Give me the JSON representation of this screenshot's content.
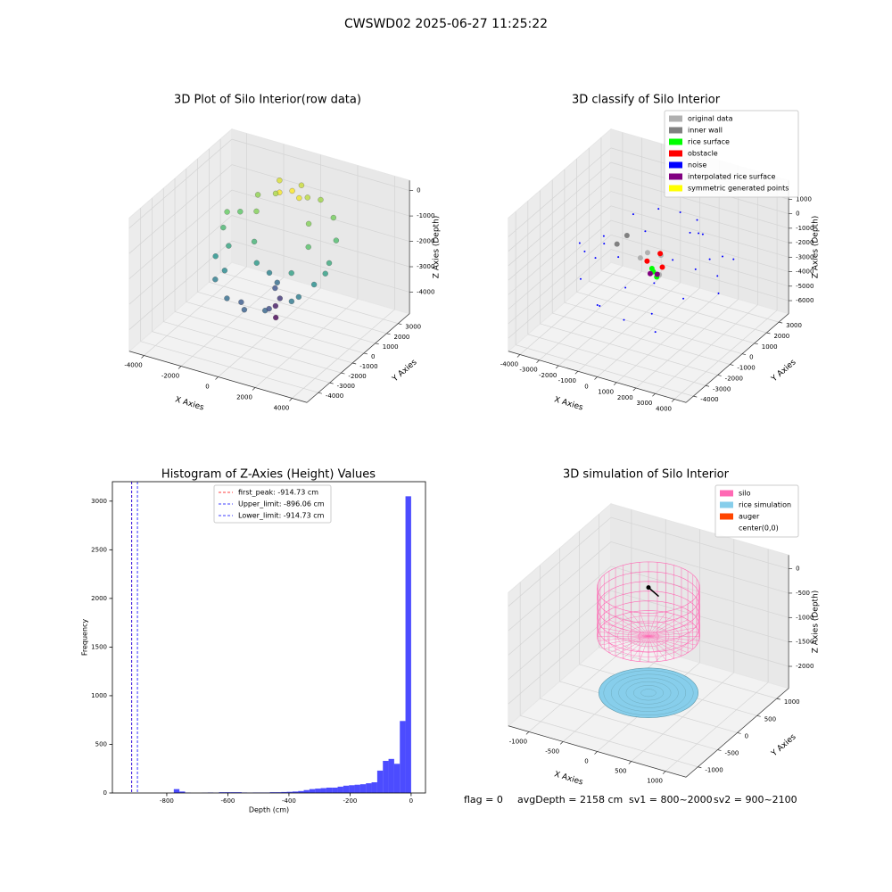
{
  "title": "CWSWD02 2025-06-27 11:25:22",
  "footer": {
    "flag": "flag = 0",
    "avg_depth": "avgDepth = 2158 cm",
    "sv1": "sv1 = 800~2000",
    "sv2": "sv2 = 900~2100"
  },
  "chart_data": [
    {
      "type": "scatter3d",
      "title": "3D Plot of Silo Interior(row data)",
      "x_label": "X Axies",
      "y_label": "Y Axies",
      "z_label": "Z Axies (Depth)",
      "xlim": [
        -4800,
        4800
      ],
      "ylim": [
        -5000,
        4000
      ],
      "zlim": [
        -4850,
        400
      ],
      "xticks": [
        -4000,
        -2000,
        0,
        2000,
        4000
      ],
      "yticks": [
        -4000,
        -3000,
        -2000,
        -1000,
        0,
        1000,
        2000,
        3000
      ],
      "zticks": [
        0,
        -1000,
        -2000,
        -3000,
        -4000
      ],
      "colormap": "viridis",
      "x": [
        -2500,
        -2800,
        -2600,
        -2000,
        -1000,
        0,
        1000,
        2000,
        2600,
        2800,
        2500,
        1800,
        800,
        -300,
        -1300,
        -2100,
        -500,
        0,
        500,
        -1500,
        -1000,
        -500,
        0,
        300,
        0,
        200,
        -100,
        100,
        1500,
        1800,
        1200,
        -2200,
        -1800,
        2200,
        -600,
        600,
        -2900,
        2900,
        -1200,
        400
      ],
      "y": [
        1000,
        0,
        -1000,
        -2000,
        -2600,
        -2700,
        -2500,
        -1800,
        -800,
        200,
        1300,
        2200,
        2700,
        2800,
        2500,
        1900,
        1200,
        1500,
        1300,
        800,
        -200,
        -800,
        -500,
        -300,
        0,
        100,
        200,
        -100,
        -1000,
        0,
        1000,
        -500,
        -1500,
        -1500,
        -2000,
        -1500,
        500,
        -300,
        2000,
        2200
      ],
      "z": [
        -1200,
        -1500,
        -2200,
        -2600,
        -2900,
        -3100,
        -3000,
        -2700,
        -2300,
        -1800,
        -1400,
        -1000,
        -700,
        -400,
        -300,
        -800,
        -100,
        -50,
        -150,
        -900,
        -1600,
        -2100,
        -2500,
        -2900,
        -3300,
        -3700,
        -4100,
        -4400,
        -2000,
        -1300,
        -900,
        -1900,
        -2400,
        -2600,
        -3200,
        -3400,
        -1100,
        -2000,
        -600,
        -500
      ]
    },
    {
      "type": "classify3d",
      "title": "3D classify of Silo Interior",
      "x_label": "X Axies",
      "y_label": "Y Axies",
      "z_label": "Z Axies (Depth)",
      "xlim": [
        -4600,
        4600
      ],
      "ylim": [
        -4600,
        3800
      ],
      "zlim": [
        -6900,
        2300
      ],
      "xticks": [
        -4000,
        -3000,
        -2000,
        -1000,
        0,
        1000,
        2000,
        3000,
        4000
      ],
      "yticks": [
        -4000,
        -3000,
        -2000,
        -1000,
        0,
        1000,
        2000,
        3000
      ],
      "zticks": [
        1000,
        0,
        -1000,
        -2000,
        -3000,
        -4000,
        -5000,
        -6000
      ],
      "legend": "upper right",
      "series": [
        {
          "name": "original data",
          "color": "#b0b0b0",
          "x": [
            -300,
            200,
            -800,
            500
          ],
          "y": [
            0,
            300,
            200,
            -300
          ],
          "z": [
            -1800,
            -2000,
            -2500,
            -2800
          ]
        },
        {
          "name": "inner wall",
          "color": "#808080",
          "x": [
            -2000,
            -2200
          ],
          "y": [
            1000,
            500
          ],
          "z": [
            -2000,
            -2300
          ]
        },
        {
          "name": "rice surface",
          "color": "#00ff00",
          "x": [
            0,
            300,
            -200
          ],
          "y": [
            0,
            -200,
            200
          ],
          "z": [
            -3000,
            -3100,
            -3000
          ]
        },
        {
          "name": "obstacle",
          "color": "#ff0000",
          "x": [
            400,
            -200,
            100
          ],
          "y": [
            100,
            -200,
            400
          ],
          "z": [
            -2600,
            -2200,
            -2000
          ]
        },
        {
          "name": "noise",
          "color": "#0000ff",
          "x": [
            -1000,
            0,
            1000,
            1800,
            -1800,
            2500,
            2600,
            -3500,
            -3200,
            -2500,
            -1000,
            500,
            1500,
            2500,
            3000,
            2000,
            0,
            -2000,
            -3000,
            1000,
            -1500,
            3500,
            -500,
            800,
            -2800,
            1200,
            3200,
            -1200,
            2000,
            -3500
          ],
          "y": [
            2000,
            2200,
            2000,
            1200,
            1200,
            -500,
            500,
            -500,
            1000,
            -2000,
            -3000,
            -3200,
            -2500,
            -1500,
            500,
            2500,
            3000,
            2500,
            0,
            0,
            -500,
            -200,
            -1500,
            -1200,
            -1200,
            1800,
            1500,
            -2500,
            -3000,
            1500
          ],
          "z": [
            -500,
            -500,
            -500,
            -600,
            -600,
            -1500,
            -1500,
            -2000,
            -2500,
            -3000,
            -3500,
            -3800,
            -3500,
            -2800,
            -2500,
            -3000,
            -2500,
            -2800,
            -3200,
            -1800,
            -2200,
            -3000,
            -3200,
            -2600,
            -1800,
            -1200,
            -2000,
            -4000,
            -4200,
            -3500
          ]
        },
        {
          "name": "interpolated rice surface",
          "color": "#800080",
          "x": [
            200,
            -100
          ],
          "y": [
            0,
            -100
          ],
          "z": [
            -3100,
            -3100
          ]
        },
        {
          "name": "symmetric generated points",
          "color": "#ffff00",
          "x": [],
          "y": [],
          "z": []
        }
      ]
    },
    {
      "type": "histogram",
      "title": "Histogram of Z-Axies (Height) Values",
      "x_label": "Depth (cm)",
      "y_label": "Frequency",
      "xlim": [
        -978,
        47
      ],
      "ylim": [
        0,
        3200
      ],
      "xticks": [
        -800,
        -600,
        -400,
        -200,
        0
      ],
      "yticks": [
        0,
        500,
        1000,
        1500,
        2000,
        2500,
        3000
      ],
      "color": "#0000ff",
      "alpha": 0.7,
      "legend": "upper center",
      "bins": [
        -925,
        -906.5,
        -888,
        -869.5,
        -851,
        -832.5,
        -814,
        -795.5,
        -777,
        -758.5,
        -740,
        -721.5,
        -703,
        -684.5,
        -666,
        -647.5,
        -629,
        -610.5,
        -592,
        -573.5,
        -555,
        -536.5,
        -518,
        -499.5,
        -481,
        -462.5,
        -444,
        -425.5,
        -407,
        -388.5,
        -370,
        -351.5,
        -333,
        -314.5,
        -296,
        -277.5,
        -259,
        -240.5,
        -222,
        -203.5,
        -185,
        -166.5,
        -148,
        -129.5,
        -111,
        -92.5,
        -74,
        -55.5,
        -37,
        -18.5,
        0
      ],
      "counts": [
        0,
        0,
        0,
        0,
        0,
        0,
        0,
        0,
        40,
        15,
        3,
        0,
        0,
        2,
        5,
        2,
        8,
        8,
        8,
        8,
        5,
        3,
        5,
        5,
        5,
        8,
        8,
        10,
        12,
        15,
        20,
        30,
        40,
        45,
        50,
        55,
        55,
        65,
        75,
        80,
        85,
        90,
        100,
        110,
        230,
        330,
        350,
        300,
        740,
        3050
      ],
      "vlines": [
        {
          "name": "first_peak: -914.73 cm",
          "value": -914.73,
          "color": "#ff0000"
        },
        {
          "name": "Upper_limit: -896.06 cm",
          "value": -896.06,
          "color": "#0000ff"
        },
        {
          "name": "Lower_limit: -914.73 cm",
          "value": -914.73,
          "color": "#0000ff"
        }
      ]
    },
    {
      "type": "silo3d",
      "title": "3D simulation of Silo Interior",
      "x_label": "X Axies",
      "y_label": "Y Axies",
      "z_label": "Z Axies (Depth)",
      "xlim": [
        -1300,
        1300
      ],
      "ylim": [
        -1300,
        1300
      ],
      "zlim": [
        -2450,
        280
      ],
      "xticks": [
        -1000,
        -500,
        0,
        500,
        1000
      ],
      "yticks": [
        -1000,
        -500,
        0,
        500,
        1000
      ],
      "zticks": [
        0,
        -500,
        -1000,
        -1500,
        -2000
      ],
      "legend": "upper right",
      "series": [
        {
          "name": "silo",
          "color": "#ff69b4",
          "radius": 650,
          "z": [
            0,
            -1000
          ]
        },
        {
          "name": "rice simulation",
          "color": "#87ceeb",
          "radius": 630,
          "z": -2158
        },
        {
          "name": "auger",
          "color": "#ff4500",
          "line_color": "#000000",
          "x": [
            0,
            150
          ],
          "y": [
            0,
            0
          ],
          "z": [
            0,
            -120
          ]
        },
        {
          "name": "center(0,0)",
          "color": "#ffffff",
          "marker_color": "#000000",
          "x": [
            0
          ],
          "y": [
            0
          ],
          "z": [
            0
          ]
        }
      ]
    }
  ]
}
